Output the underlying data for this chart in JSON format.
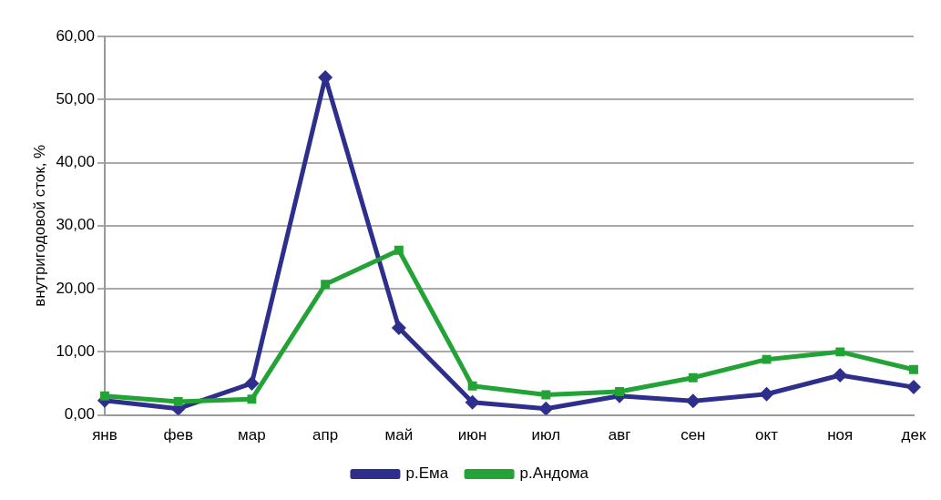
{
  "chart_data": {
    "type": "line",
    "ylabel": "внутригодовой сток, %",
    "categories": [
      "янв",
      "фев",
      "мар",
      "апр",
      "май",
      "июн",
      "июл",
      "авг",
      "сен",
      "окт",
      "ноя",
      "дек"
    ],
    "series": [
      {
        "name": "р.Ема",
        "color": "#2e2e8c",
        "marker": "diamond",
        "values": [
          2.3,
          1.0,
          5.0,
          53.5,
          13.8,
          2.0,
          1.0,
          3.0,
          2.2,
          3.3,
          6.3,
          4.4
        ]
      },
      {
        "name": "р.Андома",
        "color": "#23a336",
        "marker": "square",
        "values": [
          3.0,
          2.1,
          2.5,
          20.7,
          26.1,
          4.6,
          3.2,
          3.7,
          5.9,
          8.8,
          10.0,
          7.2
        ]
      }
    ],
    "ylim": [
      0,
      60
    ],
    "yticks": [
      {
        "value": 0,
        "label": "0,00"
      },
      {
        "value": 10,
        "label": "10,00"
      },
      {
        "value": 20,
        "label": "20,00"
      },
      {
        "value": 30,
        "label": "30,00"
      },
      {
        "value": 40,
        "label": "40,00"
      },
      {
        "value": 50,
        "label": "50,00"
      },
      {
        "value": 60,
        "label": "60,00"
      }
    ],
    "grid": "y",
    "legend": "bottom",
    "line_style": "solid"
  }
}
